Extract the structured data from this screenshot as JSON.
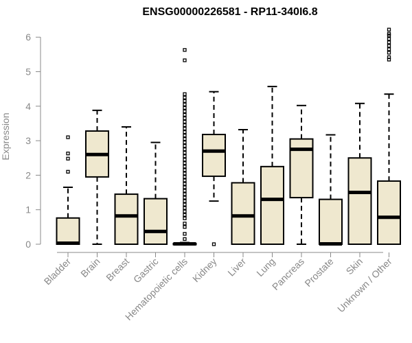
{
  "chart_data": {
    "type": "box",
    "title": "ENSG00000226581 - RP11-340I6.8",
    "xlabel": "",
    "ylabel": "Expression",
    "ylim": [
      0,
      6.2
    ],
    "yticks": [
      0,
      1,
      2,
      3,
      4,
      5,
      6
    ],
    "box_fill": "#efe8cf",
    "categories": [
      "Bladder",
      "Brain",
      "Breast",
      "Gastric",
      "Hematopoietic cells",
      "Kidney",
      "Liver",
      "Lung",
      "Pancreas",
      "Prostate",
      "Skin",
      "Unknown / Other"
    ],
    "boxes": [
      {
        "name": "Bladder",
        "whisker_low": 0,
        "q1": 0,
        "median": 0.03,
        "q3": 0.76,
        "whisker_high": 1.65,
        "outliers": [
          2.1,
          2.48,
          2.63,
          3.1
        ]
      },
      {
        "name": "Brain",
        "whisker_low": 0,
        "q1": 1.95,
        "median": 2.6,
        "q3": 3.28,
        "whisker_high": 3.88,
        "outliers": []
      },
      {
        "name": "Breast",
        "whisker_low": 0,
        "q1": 0,
        "median": 0.82,
        "q3": 1.45,
        "whisker_high": 3.4,
        "outliers": []
      },
      {
        "name": "Gastric",
        "whisker_low": 0,
        "q1": 0,
        "median": 0.37,
        "q3": 1.32,
        "whisker_high": 2.95,
        "outliers": []
      },
      {
        "name": "Hematopoietic cells",
        "whisker_low": 0,
        "q1": 0,
        "median": 0.01,
        "q3": 0.02,
        "whisker_high": 0.05,
        "outliers": [
          0.15,
          0.3,
          0.5,
          0.6,
          0.75,
          0.85,
          0.95,
          1.05,
          1.15,
          1.25,
          1.35,
          1.45,
          1.55,
          1.65,
          1.75,
          1.85,
          1.95,
          2.05,
          2.15,
          2.25,
          2.35,
          2.45,
          2.55,
          2.65,
          2.75,
          2.85,
          2.95,
          3.05,
          3.15,
          3.25,
          3.35,
          3.45,
          3.55,
          3.65,
          3.75,
          3.85,
          3.95,
          4.05,
          4.15,
          4.25,
          4.35,
          5.33,
          5.63
        ]
      },
      {
        "name": "Kidney",
        "whisker_low": 1.25,
        "q1": 1.97,
        "median": 2.7,
        "q3": 3.18,
        "whisker_high": 4.42,
        "outliers": [
          0
        ]
      },
      {
        "name": "Liver",
        "whisker_low": 0,
        "q1": 0,
        "median": 0.82,
        "q3": 1.78,
        "whisker_high": 3.32,
        "outliers": []
      },
      {
        "name": "Lung",
        "whisker_low": 0,
        "q1": 0,
        "median": 1.3,
        "q3": 2.25,
        "whisker_high": 4.57,
        "outliers": []
      },
      {
        "name": "Pancreas",
        "whisker_low": 0,
        "q1": 1.35,
        "median": 2.75,
        "q3": 3.05,
        "whisker_high": 4.02,
        "outliers": []
      },
      {
        "name": "Prostate",
        "whisker_low": 0,
        "q1": 0,
        "median": 0.01,
        "q3": 1.3,
        "whisker_high": 3.17,
        "outliers": []
      },
      {
        "name": "Skin",
        "whisker_low": 0,
        "q1": 0,
        "median": 1.5,
        "q3": 2.5,
        "whisker_high": 4.08,
        "outliers": []
      },
      {
        "name": "Unknown / Other",
        "whisker_low": 0,
        "q1": 0,
        "median": 0.78,
        "q3": 1.83,
        "whisker_high": 4.35,
        "outliers": [
          5.35,
          5.42,
          5.55,
          5.65,
          5.75,
          5.85,
          5.95,
          6.05,
          6.1,
          6.22
        ]
      }
    ]
  }
}
